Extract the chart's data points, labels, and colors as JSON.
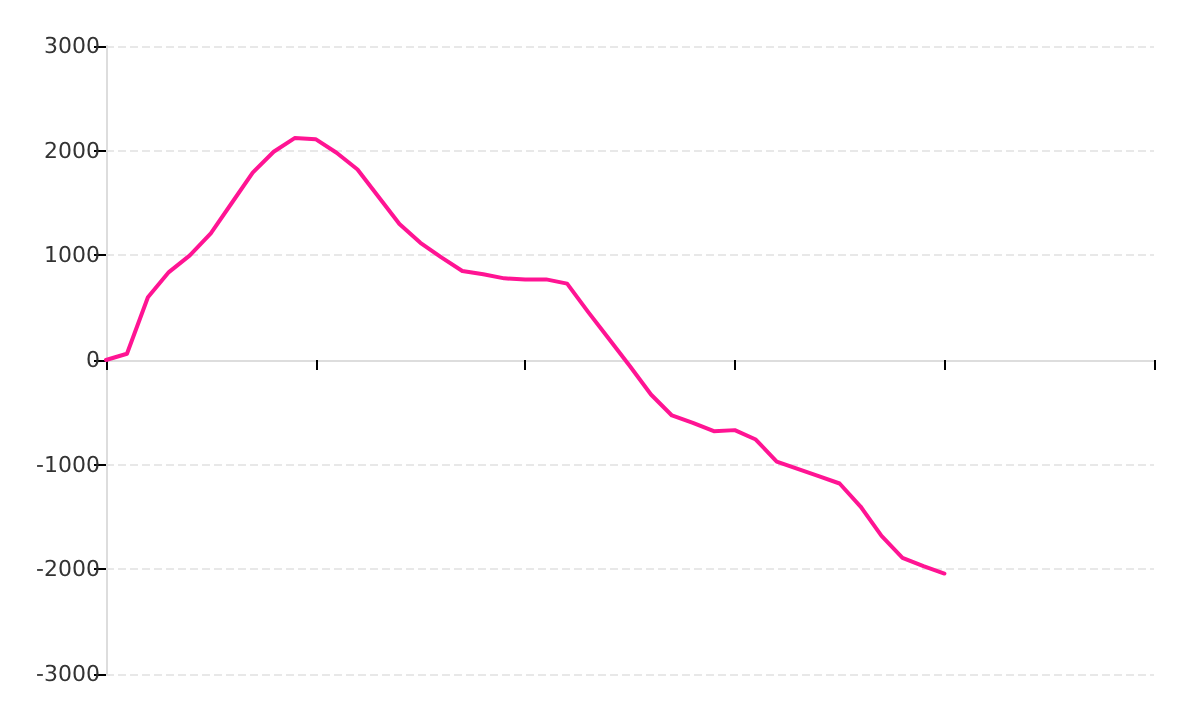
{
  "chart_data": {
    "type": "line",
    "categories": [
      null,
      null,
      null,
      null,
      null,
      null,
      null,
      null,
      null,
      null,
      null,
      null,
      null,
      null,
      null,
      null,
      null,
      null,
      null,
      null,
      null,
      null,
      null,
      null,
      null,
      null,
      null,
      null,
      null,
      null,
      null,
      null,
      null,
      null,
      null,
      null,
      null,
      null,
      null,
      null,
      null,
      null,
      null,
      null,
      null,
      null,
      null,
      null,
      null,
      null,
      null
    ],
    "series": [
      {
        "color": "#ff1493",
        "values": [
          0,
          60,
          600,
          840,
          1000,
          1210,
          1500,
          1790,
          1990,
          2120,
          2110,
          1980,
          1820,
          1560,
          1300,
          1120,
          980,
          850,
          820,
          780,
          770,
          770,
          730,
          460,
          200,
          -60,
          -330,
          -530,
          -600,
          -680,
          -670,
          -760,
          -970,
          -1040,
          -1110,
          -1180,
          -1400,
          -1680,
          -1890,
          -1970,
          -2040,
          null,
          null,
          null,
          null,
          null,
          null,
          null,
          null,
          null,
          null
        ]
      }
    ],
    "ylim": [
      -3000,
      3000
    ],
    "yticks": [
      -3000,
      -2000,
      -1000,
      0,
      1000,
      2000,
      3000
    ],
    "grid": "y",
    "marker": "none",
    "line_style": "solid"
  }
}
